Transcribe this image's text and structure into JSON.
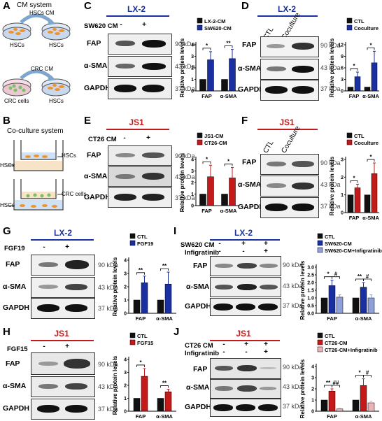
{
  "colors": {
    "blue": "#1a2fa0",
    "red": "#c41a1a",
    "black": "#111111",
    "pink": "#e8b4b8"
  },
  "panel_A": {
    "letter": "A",
    "title": "CM system",
    "top_arrow": "HSCs CM",
    "top_left": "HSCs",
    "top_right": "HSCs",
    "bottom_arrow": "CRC CM",
    "bottom_left": "CRC cells",
    "bottom_right": "HSCs"
  },
  "panel_B": {
    "letter": "B",
    "title": "Co-culture system",
    "top_left": "HSCs",
    "top_right": "HSCs",
    "bottom_left": "HSCs",
    "bottom_right": "CRC cells"
  },
  "panel_C": {
    "letter": "C",
    "cell": "LX-2",
    "condition": "SW620 CM",
    "minus": "-",
    "plus": "+",
    "rows": [
      "FAP",
      "α-SMA",
      "GAPDH"
    ],
    "kda": [
      "90 kDa",
      "43 kDa",
      "37 kDa"
    ]
  },
  "panel_D": {
    "letter": "D",
    "cell": "LX-2",
    "lanes": [
      "CTL",
      "Coculture"
    ],
    "rows": [
      "FAP",
      "α-SMA",
      "GAPDH"
    ],
    "kda": [
      "90 kDa",
      "43 kDa",
      "37 kDa"
    ]
  },
  "panel_E": {
    "letter": "E",
    "cell": "JS1",
    "condition": "CT26 CM",
    "minus": "-",
    "plus": "+",
    "rows": [
      "FAP",
      "α-SMA",
      "GAPDH"
    ],
    "kda": [
      "90 kDa",
      "43 kDa",
      "37 kDa"
    ]
  },
  "panel_F": {
    "letter": "F",
    "cell": "JS1",
    "lanes": [
      "CTL",
      "Coculture"
    ],
    "rows": [
      "FAP",
      "α-SMA",
      "GAPDH"
    ],
    "kda": [
      "90 kDa",
      "43 kDa",
      "37 kDa"
    ]
  },
  "panel_G": {
    "letter": "G",
    "cell": "LX-2",
    "condition": "FGF19",
    "minus": "-",
    "plus": "+",
    "rows": [
      "FAP",
      "α-SMA",
      "GAPDH"
    ],
    "kda": [
      "90 kDa",
      "43 kDa",
      "37 kDa"
    ]
  },
  "panel_H": {
    "letter": "H",
    "cell": "JS1",
    "condition": "FGF15",
    "minus": "-",
    "plus": "+",
    "rows": [
      "FAP",
      "α-SMA",
      "GAPDH"
    ],
    "kda": [
      "90 kDa",
      "43 kDa",
      "37 kDa"
    ]
  },
  "panel_I": {
    "letter": "I",
    "cell": "LX-2",
    "conditions": [
      "SW620 CM",
      "Infigratinib"
    ],
    "signs": [
      [
        "-",
        "+",
        "+"
      ],
      [
        "-",
        "-",
        "+"
      ]
    ],
    "rows": [
      "FAP",
      "α-SMA",
      "GAPDH"
    ],
    "kda": [
      "90 kDa",
      "43 kDa",
      "37 kDa"
    ]
  },
  "panel_J": {
    "letter": "J",
    "cell": "JS1",
    "conditions": [
      "CT26 CM",
      "Infigratinib"
    ],
    "signs": [
      [
        "-",
        "+",
        "+"
      ],
      [
        "-",
        "-",
        "+"
      ]
    ],
    "rows": [
      "FAP",
      "α-SMA",
      "GAPDH"
    ],
    "kda": [
      "90 kDa",
      "43 kDa",
      "37 kDa"
    ]
  },
  "chart_data": [
    {
      "panel": "C",
      "type": "bar",
      "categories": [
        "FAP",
        "α-SMA"
      ],
      "ylabel": "Relative protein levels",
      "ylim": [
        0,
        4
      ],
      "yticks": [
        "0",
        "1",
        "2",
        "3",
        "4"
      ],
      "series": [
        {
          "name": "LX-2-CM",
          "color": "#111111",
          "values": [
            1,
            1
          ]
        },
        {
          "name": "SW620-CM",
          "color": "#1a2fa0",
          "values": [
            2.7,
            2.8
          ]
        }
      ],
      "errors": [
        [
          0,
          0
        ],
        [
          0.7,
          0.8
        ]
      ],
      "sig": [
        "*",
        "**"
      ],
      "legend": "top-left"
    },
    {
      "panel": "D",
      "type": "bar",
      "categories": [
        "FAP",
        "α-SMA"
      ],
      "ylabel": "Relative protein levels",
      "ylim": [
        0,
        12
      ],
      "yticks": [
        "0",
        "3",
        "6",
        "9",
        "12"
      ],
      "series": [
        {
          "name": "CTL",
          "color": "#111111",
          "values": [
            1,
            1
          ]
        },
        {
          "name": "Coculture",
          "color": "#1a2fa0",
          "values": [
            3.7,
            7.3
          ]
        }
      ],
      "errors": [
        [
          0,
          0
        ],
        [
          1.2,
          3.0
        ]
      ],
      "sig": [
        "*",
        "*"
      ],
      "legend": "top-left"
    },
    {
      "panel": "E",
      "type": "bar",
      "categories": [
        "FAP",
        "α-SMA"
      ],
      "ylabel": "Relative protein levels",
      "ylim": [
        0,
        4
      ],
      "yticks": [
        "0",
        "1",
        "2",
        "3",
        "4"
      ],
      "series": [
        {
          "name": "JS1-CM",
          "color": "#111111",
          "values": [
            1,
            1
          ]
        },
        {
          "name": "CT26-CM",
          "color": "#c41a1a",
          "values": [
            2.5,
            2.4
          ]
        }
      ],
      "errors": [
        [
          0,
          0
        ],
        [
          1.0,
          0.9
        ]
      ],
      "sig": [
        "*",
        "*"
      ],
      "legend": "top-left"
    },
    {
      "panel": "F",
      "type": "bar",
      "categories": [
        "FAP",
        "α-SMA"
      ],
      "ylabel": "Relative protein levels",
      "ylim": [
        0,
        3
      ],
      "yticks": [
        "0",
        "1",
        "2",
        "3"
      ],
      "series": [
        {
          "name": "CTL",
          "color": "#111111",
          "values": [
            1,
            1
          ]
        },
        {
          "name": "Coculture",
          "color": "#c41a1a",
          "values": [
            1.4,
            2.2
          ]
        }
      ],
      "errors": [
        [
          0,
          0
        ],
        [
          0.2,
          0.6
        ]
      ],
      "sig": [
        "*",
        "*"
      ],
      "legend": "top-left"
    },
    {
      "panel": "G",
      "type": "bar",
      "categories": [
        "FAP",
        "α-SMA"
      ],
      "ylabel": "Relative protein levels",
      "ylim": [
        0,
        4
      ],
      "yticks": [
        "0",
        "1",
        "2",
        "3",
        "4"
      ],
      "series": [
        {
          "name": "CTL",
          "color": "#111111",
          "values": [
            1,
            1
          ]
        },
        {
          "name": "FGF19",
          "color": "#1a2fa0",
          "values": [
            2.3,
            2.2
          ]
        }
      ],
      "errors": [
        [
          0,
          0
        ],
        [
          0.5,
          0.9
        ]
      ],
      "sig": [
        "**",
        "**"
      ],
      "legend": "top"
    },
    {
      "panel": "H",
      "type": "bar",
      "categories": [
        "FAP",
        "α-SMA"
      ],
      "ylabel": "Relative protein levels",
      "ylim": [
        0,
        4
      ],
      "yticks": [
        "0",
        "1",
        "2",
        "3",
        "4"
      ],
      "series": [
        {
          "name": "CTL",
          "color": "#111111",
          "values": [
            1,
            1
          ]
        },
        {
          "name": "FGF15",
          "color": "#c41a1a",
          "values": [
            2.7,
            1.5
          ]
        }
      ],
      "errors": [
        [
          0,
          0
        ],
        [
          0.6,
          0.2
        ]
      ],
      "sig": [
        "*",
        "**"
      ],
      "legend": "top"
    },
    {
      "panel": "I",
      "type": "bar",
      "categories": [
        "FAP",
        "α-SMA"
      ],
      "ylabel": "Relative protein levels",
      "ylim": [
        0,
        3
      ],
      "yticks": [
        "0.0",
        "0.5",
        "1.0",
        "1.5",
        "2.0",
        "2.5",
        "3.0"
      ],
      "series": [
        {
          "name": "CTL",
          "color": "#111111",
          "values": [
            1,
            1
          ]
        },
        {
          "name": "SW620-CM",
          "color": "#1a2fa0",
          "values": [
            1.8,
            1.7
          ]
        },
        {
          "name": "SW620-CM+Infigratinib",
          "color": "#8fa0d8",
          "values": [
            1.05,
            1.0
          ]
        }
      ],
      "errors": [
        [
          0,
          0
        ],
        [
          0.35,
          0.3
        ],
        [
          0.15,
          0.2
        ]
      ],
      "sig": [
        [
          "*",
          "#"
        ],
        [
          "**",
          "#"
        ]
      ],
      "legend": "top"
    },
    {
      "panel": "J",
      "type": "bar",
      "categories": [
        "FAP",
        "α-SMA"
      ],
      "ylabel": "Relative protein levels",
      "ylim": [
        0,
        4
      ],
      "yticks": [
        "0",
        "1",
        "2",
        "3",
        "4"
      ],
      "series": [
        {
          "name": "CTL",
          "color": "#111111",
          "values": [
            1,
            1
          ]
        },
        {
          "name": "CT26-CM",
          "color": "#c41a1a",
          "values": [
            1.8,
            2.3
          ]
        },
        {
          "name": "CT26-CM+Infigratinib",
          "color": "#e8b4b8",
          "values": [
            0.2,
            0.75
          ]
        }
      ],
      "errors": [
        [
          0,
          0
        ],
        [
          0.2,
          0.6
        ],
        [
          0.05,
          0.15
        ]
      ],
      "sig": [
        [
          "**",
          "##"
        ],
        [
          "*",
          "#"
        ]
      ],
      "legend": "top"
    }
  ]
}
